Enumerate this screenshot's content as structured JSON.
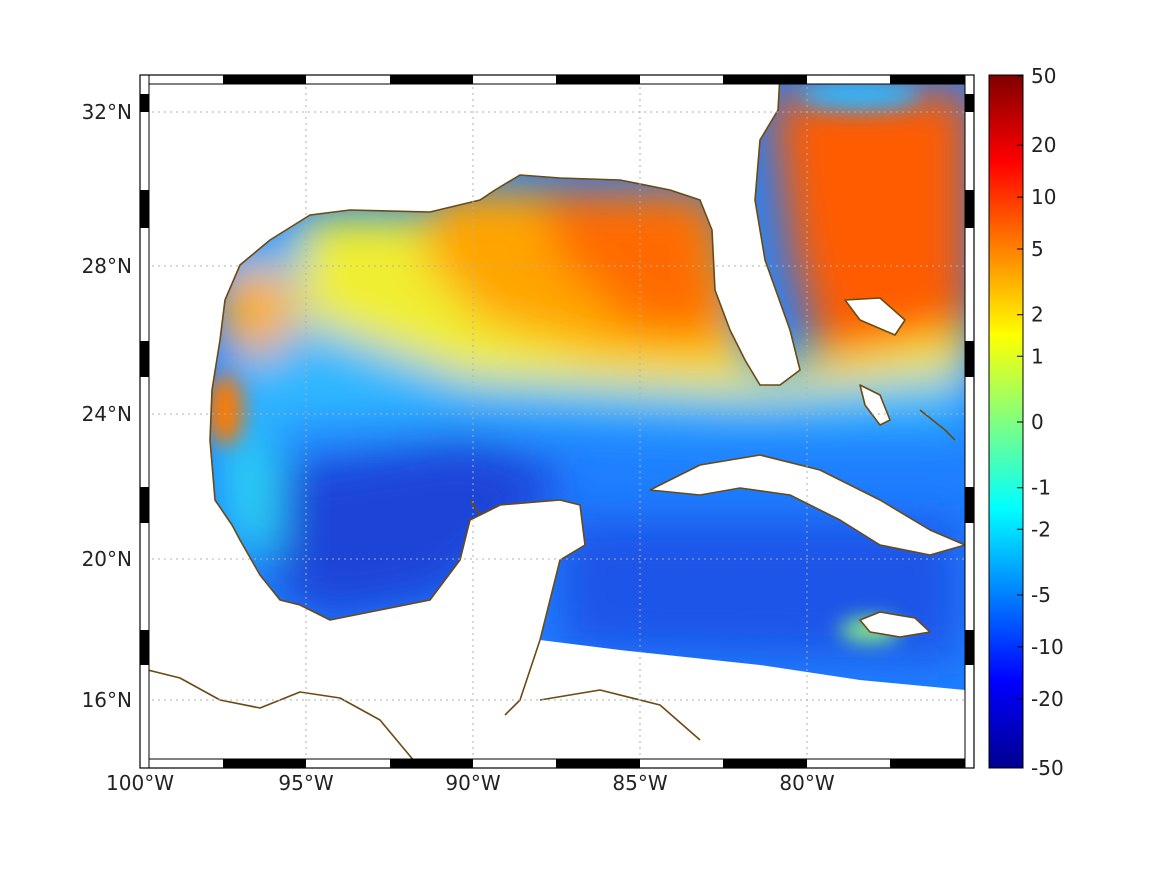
{
  "map": {
    "lon_labels": [
      "100°W",
      "95°W",
      "90°W",
      "85°W",
      "80°W"
    ],
    "lat_labels": [
      "32°N",
      "28°N",
      "24°N",
      "20°N",
      "16°N"
    ],
    "land_fill": "#ffffff",
    "coastline_color": "#6b4a14",
    "grid": "dotted",
    "field_colors": {
      "deep_negative": "#1e3fd6",
      "negative": "#1f7fff",
      "near_zero_neg": "#27c9f2",
      "near_zero_pos": "#f2f228",
      "positive": "#ffb000",
      "strong_positive": "#ff5a00"
    }
  },
  "colorbar": {
    "labels": [
      "50",
      "20",
      "10",
      "5",
      "2",
      "1",
      "0",
      "-1",
      "-2",
      "-5",
      "-10",
      "-20",
      "-50"
    ],
    "scale": "symmetric-log",
    "colormap": "jet",
    "stops": [
      "#00008f",
      "#0000ff",
      "#0080ff",
      "#00ffff",
      "#80ff80",
      "#ffff00",
      "#ff8000",
      "#ff0000",
      "#800000"
    ]
  }
}
